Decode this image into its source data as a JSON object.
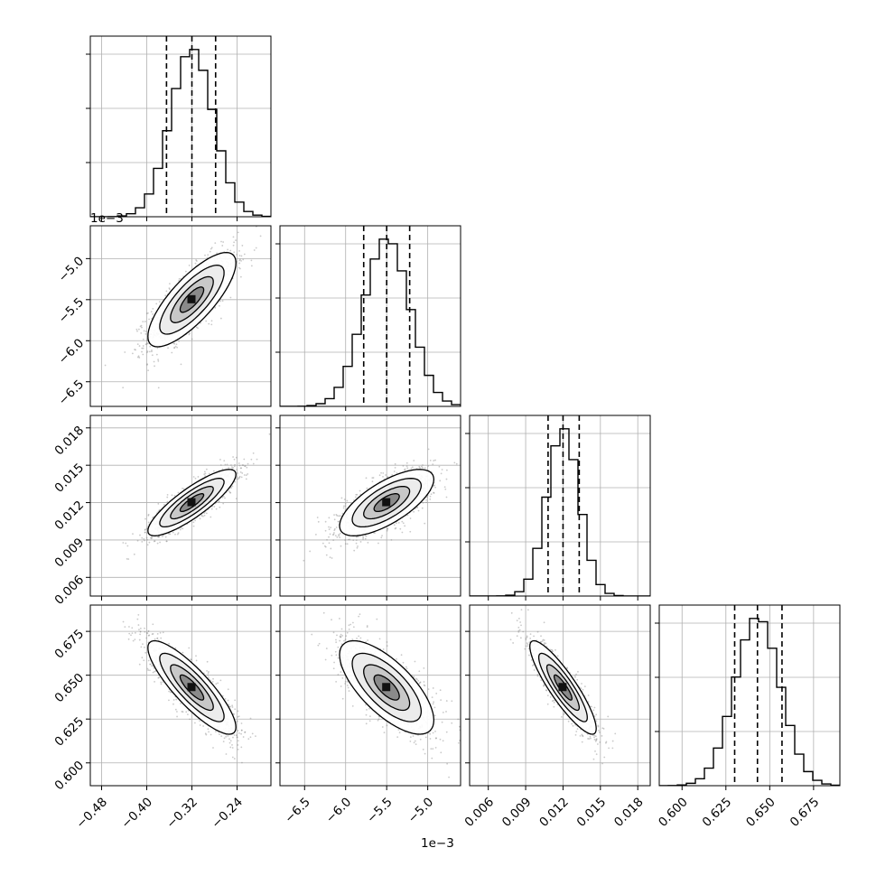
{
  "chart_data": {
    "type": "corner",
    "grid": true,
    "colors": {
      "line": "#000000",
      "grid": "#b0b0b0",
      "points": "#8a8a8a"
    },
    "parameters": [
      {
        "range": [
          -0.5,
          -0.18
        ],
        "ticks": [
          -0.48,
          -0.4,
          -0.32,
          -0.24
        ],
        "tick_labels": [
          "−0.48",
          "−0.40",
          "−0.32",
          "−0.24"
        ],
        "quantiles": [
          -0.365,
          -0.32,
          -0.278
        ],
        "mean": -0.32,
        "sd": 0.038,
        "offset_label": ""
      },
      {
        "range": [
          -6.8,
          -4.6
        ],
        "ticks": [
          -6.5,
          -6.0,
          -5.5,
          -5.0
        ],
        "tick_labels": [
          "−6.5",
          "−6.0",
          "−5.5",
          "−5.0"
        ],
        "quantiles": [
          -5.78,
          -5.5,
          -5.22
        ],
        "mean": -5.5,
        "sd": 0.28,
        "offset_label": "1e−3"
      },
      {
        "range": [
          0.0045,
          0.019
        ],
        "ticks": [
          0.006,
          0.009,
          0.012,
          0.015,
          0.018
        ],
        "tick_labels": [
          "0.006",
          "0.009",
          "0.012",
          "0.015",
          "0.018"
        ],
        "quantiles": [
          0.0108,
          0.012,
          0.0133
        ],
        "mean": 0.012,
        "sd": 0.0013,
        "offset_label": ""
      },
      {
        "range": [
          0.587,
          0.69
        ],
        "ticks": [
          0.6,
          0.625,
          0.65,
          0.675
        ],
        "tick_labels": [
          "0.600",
          "0.625",
          "0.650",
          "0.675"
        ],
        "quantiles": [
          0.63,
          0.643,
          0.657
        ],
        "mean": 0.643,
        "sd": 0.013,
        "offset_label": ""
      }
    ],
    "correlations": {
      "1-0": 0.78,
      "2-0": 0.85,
      "2-1": 0.7,
      "3-0": -0.85,
      "3-1": -0.7,
      "3-2": -0.88
    }
  }
}
